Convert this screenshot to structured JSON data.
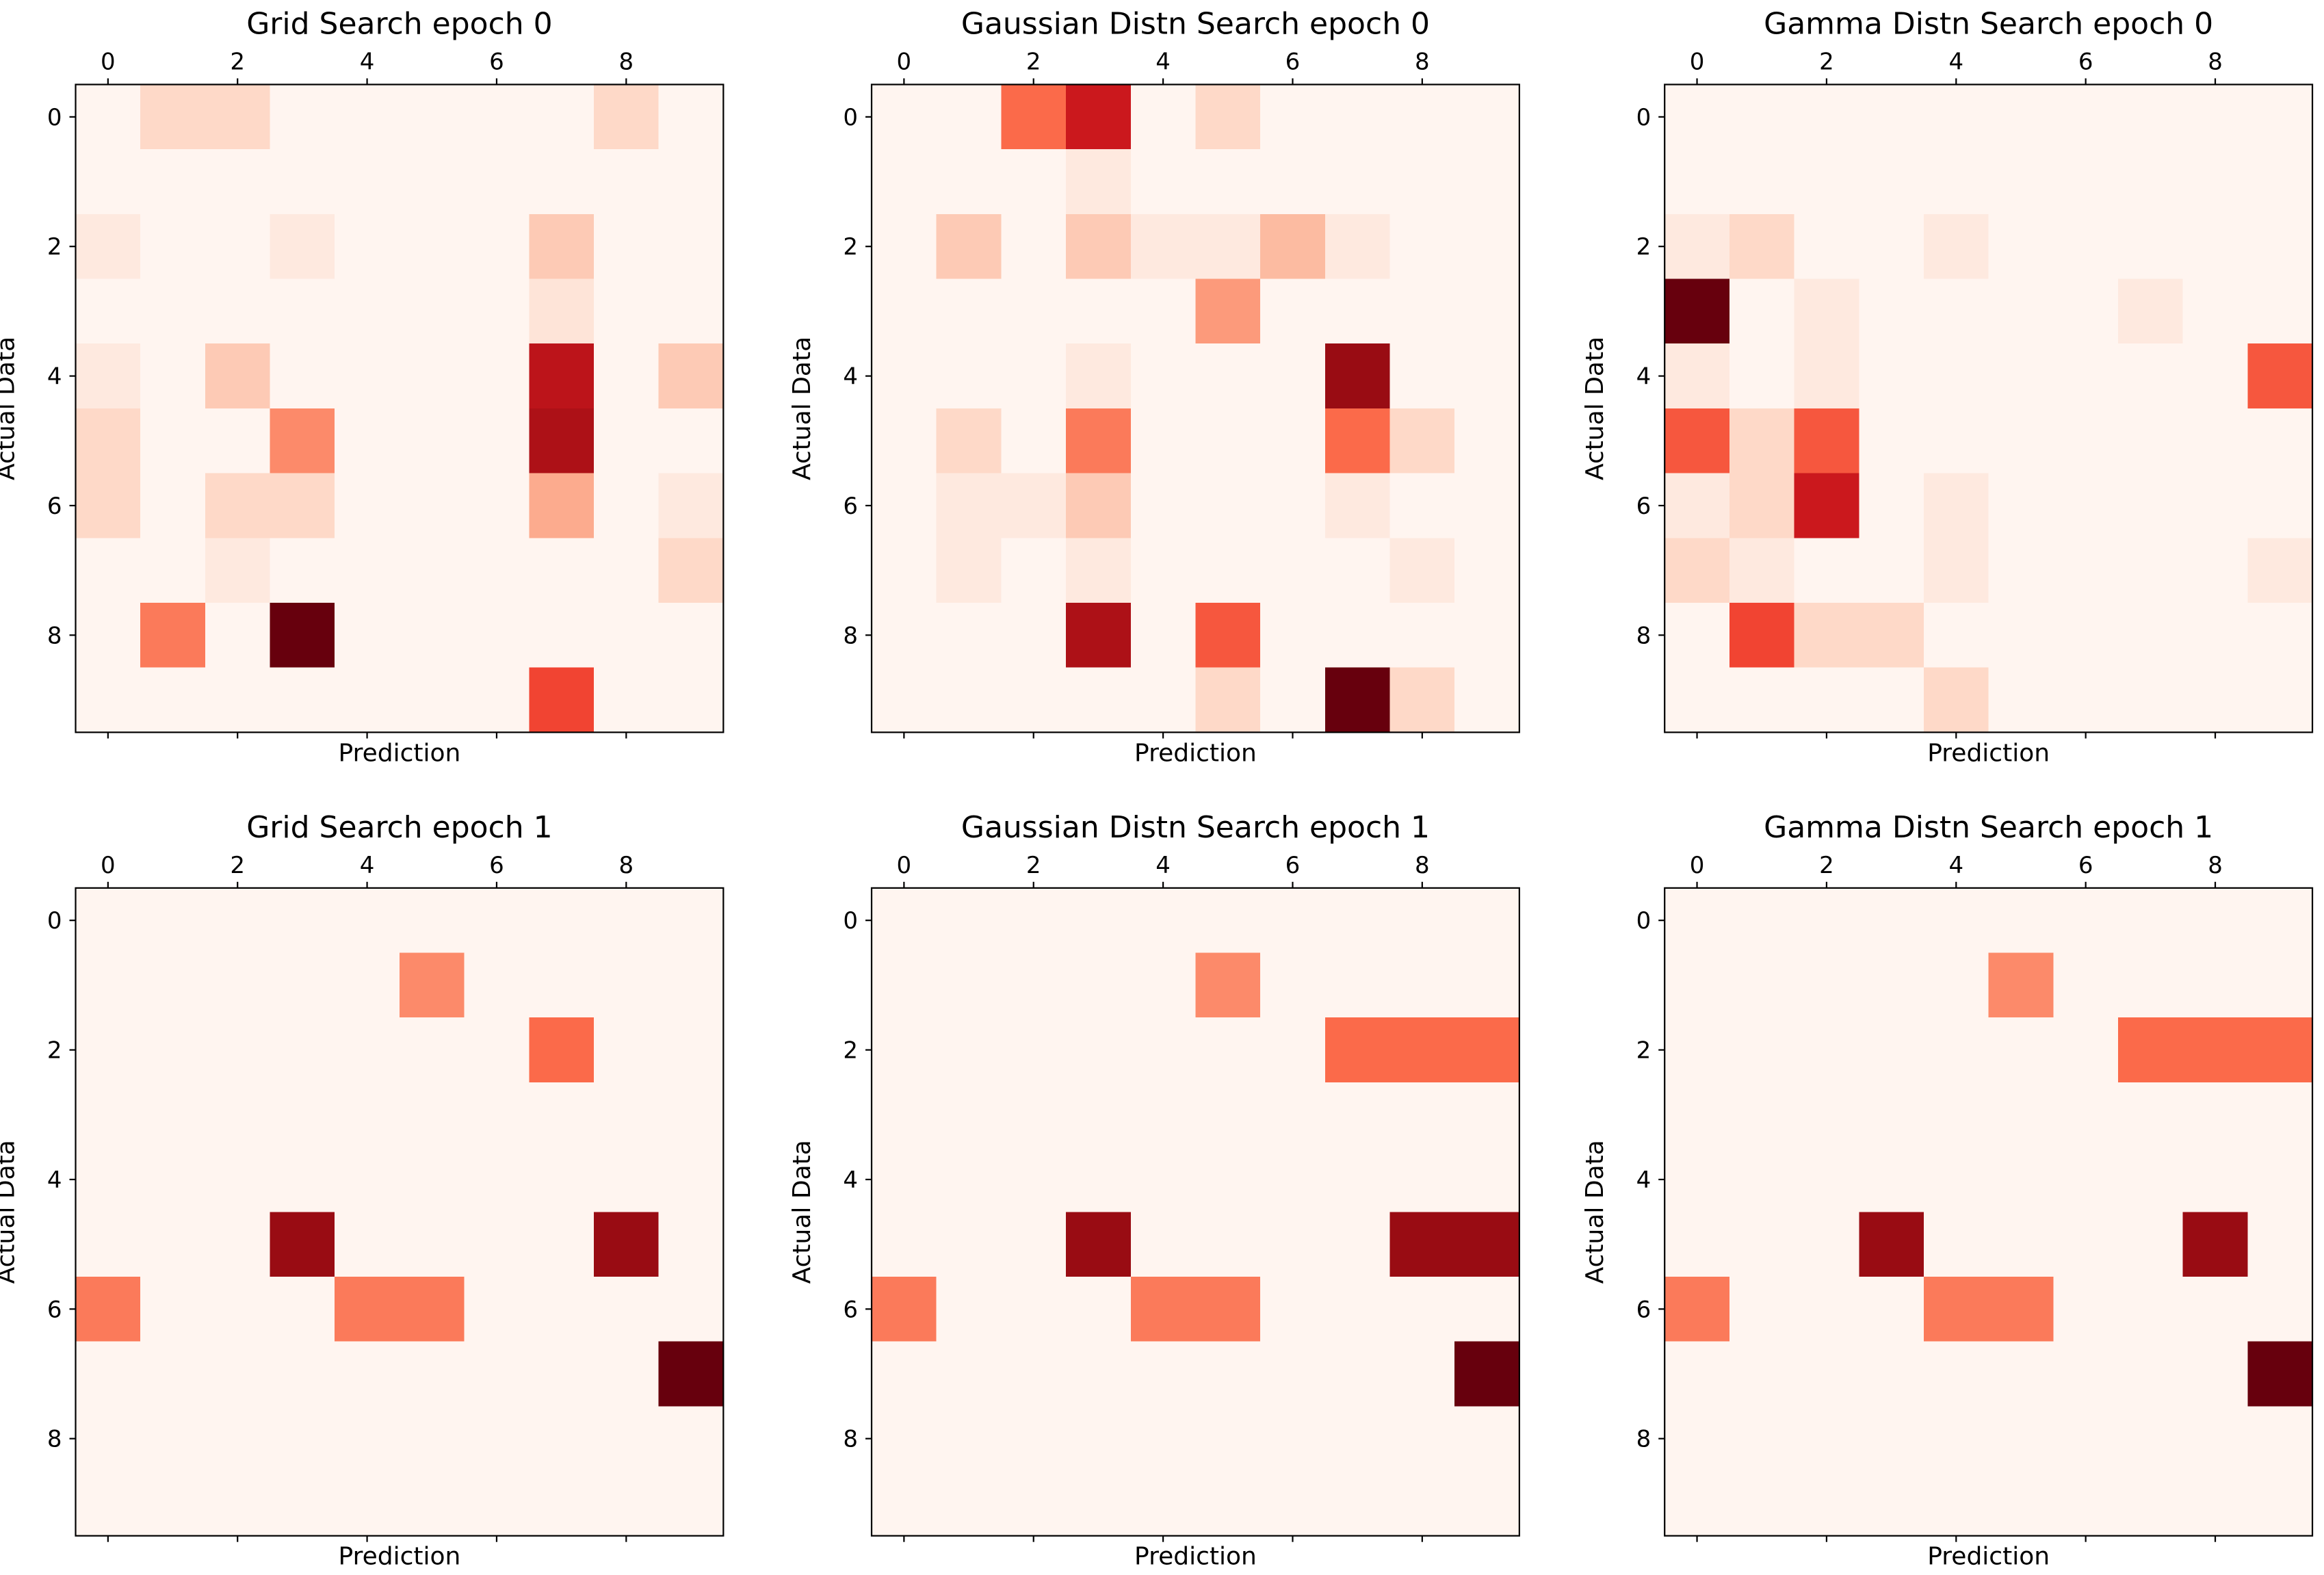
{
  "figure": {
    "type": "confusion-matrix-grid"
  },
  "chart_data": [
    {
      "type": "heatmap",
      "colormap": "Reds",
      "title": "Grid Search epoch 0",
      "xlabel": "Prediction",
      "ylabel": "Actual Data",
      "x_ticks": [
        "0",
        "2",
        "4",
        "6",
        "8"
      ],
      "y_ticks": [
        "0",
        "2",
        "4",
        "6",
        "8"
      ],
      "rows": 10,
      "cols": 10,
      "matrix": [
        [
          0,
          0.15,
          0.15,
          0,
          0,
          0,
          0,
          0,
          0.15,
          0
        ],
        [
          0,
          0,
          0,
          0,
          0,
          0,
          0,
          0,
          0,
          0
        ],
        [
          0.07,
          0,
          0,
          0.07,
          0,
          0,
          0,
          0.2,
          0,
          0
        ],
        [
          0,
          0,
          0,
          0,
          0,
          0,
          0,
          0.1,
          0,
          0
        ],
        [
          0.07,
          0,
          0.2,
          0,
          0,
          0,
          0,
          0.8,
          0,
          0.2
        ],
        [
          0.15,
          0,
          0,
          0.4,
          0,
          0,
          0,
          0.85,
          0,
          0
        ],
        [
          0.15,
          0,
          0.15,
          0.15,
          0,
          0,
          0,
          0.3,
          0,
          0.07
        ],
        [
          0,
          0,
          0.07,
          0,
          0,
          0,
          0,
          0,
          0,
          0.15
        ],
        [
          0,
          0.45,
          0,
          1,
          0,
          0,
          0,
          0,
          0,
          0
        ],
        [
          0,
          0,
          0,
          0,
          0,
          0,
          0,
          0.6,
          0,
          0
        ]
      ]
    },
    {
      "type": "heatmap",
      "colormap": "Reds",
      "title": "Gaussian Distn Search epoch 0",
      "xlabel": "Prediction",
      "ylabel": "Actual Data",
      "x_ticks": [
        "0",
        "2",
        "4",
        "6",
        "8"
      ],
      "y_ticks": [
        "0",
        "2",
        "4",
        "6",
        "8"
      ],
      "rows": 10,
      "cols": 10,
      "matrix": [
        [
          0,
          0,
          0.5,
          0.75,
          0,
          0.15,
          0,
          0,
          0,
          0
        ],
        [
          0,
          0,
          0,
          0.07,
          0,
          0,
          0,
          0,
          0,
          0
        ],
        [
          0,
          0.2,
          0,
          0.2,
          0.07,
          0.07,
          0.25,
          0.07,
          0,
          0
        ],
        [
          0,
          0,
          0,
          0,
          0,
          0.35,
          0,
          0,
          0,
          0
        ],
        [
          0,
          0,
          0,
          0.07,
          0,
          0,
          0,
          0.9,
          0,
          0
        ],
        [
          0,
          0.15,
          0,
          0.45,
          0,
          0,
          0,
          0.5,
          0.15,
          0
        ],
        [
          0,
          0.07,
          0.07,
          0.2,
          0,
          0,
          0,
          0.07,
          0,
          0
        ],
        [
          0,
          0.07,
          0,
          0.07,
          0,
          0,
          0,
          0,
          0.07,
          0
        ],
        [
          0,
          0,
          0,
          0.85,
          0,
          0.55,
          0,
          0,
          0,
          0
        ],
        [
          0,
          0,
          0,
          0,
          0,
          0.15,
          0,
          1,
          0.15,
          0
        ]
      ]
    },
    {
      "type": "heatmap",
      "colormap": "Reds",
      "title": "Gamma Distn Search epoch 0",
      "xlabel": "Prediction",
      "ylabel": "Actual Data",
      "x_ticks": [
        "0",
        "2",
        "4",
        "6",
        "8"
      ],
      "y_ticks": [
        "0",
        "2",
        "4",
        "6",
        "8"
      ],
      "rows": 10,
      "cols": 10,
      "matrix": [
        [
          0,
          0,
          0,
          0,
          0,
          0,
          0,
          0,
          0,
          0
        ],
        [
          0,
          0,
          0,
          0,
          0,
          0,
          0,
          0,
          0,
          0
        ],
        [
          0.07,
          0.15,
          0,
          0,
          0.07,
          0,
          0,
          0,
          0,
          0
        ],
        [
          1,
          0,
          0.07,
          0,
          0,
          0,
          0,
          0.07,
          0,
          0
        ],
        [
          0.07,
          0,
          0.07,
          0,
          0,
          0,
          0,
          0,
          0,
          0.55
        ],
        [
          0.55,
          0.15,
          0.55,
          0,
          0,
          0,
          0,
          0,
          0,
          0
        ],
        [
          0.07,
          0.15,
          0.75,
          0,
          0.07,
          0,
          0,
          0,
          0,
          0
        ],
        [
          0.15,
          0.07,
          0,
          0,
          0.07,
          0,
          0,
          0,
          0,
          0.07
        ],
        [
          0,
          0.6,
          0.15,
          0.15,
          0,
          0,
          0,
          0,
          0,
          0
        ],
        [
          0,
          0,
          0,
          0,
          0.15,
          0,
          0,
          0,
          0,
          0
        ]
      ]
    },
    {
      "type": "heatmap",
      "colormap": "Reds",
      "title": "Grid Search epoch 1",
      "xlabel": "Prediction",
      "ylabel": "Actual Data",
      "x_ticks": [
        "0",
        "2",
        "4",
        "6",
        "8"
      ],
      "y_ticks": [
        "0",
        "2",
        "4",
        "6",
        "8"
      ],
      "rows": 10,
      "cols": 10,
      "matrix": [
        [
          0,
          0,
          0,
          0,
          0,
          0,
          0,
          0,
          0,
          0
        ],
        [
          0,
          0,
          0,
          0,
          0,
          0.4,
          0,
          0,
          0,
          0
        ],
        [
          0,
          0,
          0,
          0,
          0,
          0,
          0,
          0.5,
          0,
          0
        ],
        [
          0,
          0,
          0,
          0,
          0,
          0,
          0,
          0,
          0,
          0
        ],
        [
          0,
          0,
          0,
          0,
          0,
          0,
          0,
          0,
          0,
          0
        ],
        [
          0,
          0,
          0,
          0.9,
          0,
          0,
          0,
          0,
          0.9,
          0
        ],
        [
          0.45,
          0,
          0,
          0,
          0.45,
          0.45,
          0,
          0,
          0,
          0
        ],
        [
          0,
          0,
          0,
          0,
          0,
          0,
          0,
          0,
          0,
          1
        ],
        [
          0,
          0,
          0,
          0,
          0,
          0,
          0,
          0,
          0,
          0
        ],
        [
          0,
          0,
          0,
          0,
          0,
          0,
          0,
          0,
          0,
          0
        ]
      ]
    },
    {
      "type": "heatmap",
      "colormap": "Reds",
      "title": "Gaussian Distn Search epoch 1",
      "xlabel": "Prediction",
      "ylabel": "Actual Data",
      "x_ticks": [
        "0",
        "2",
        "4",
        "6",
        "8"
      ],
      "y_ticks": [
        "0",
        "2",
        "4",
        "6",
        "8"
      ],
      "rows": 10,
      "cols": 10,
      "matrix": [
        [
          0,
          0,
          0,
          0,
          0,
          0,
          0,
          0,
          0,
          0
        ],
        [
          0,
          0,
          0,
          0,
          0,
          0.4,
          0,
          0,
          0,
          0
        ],
        [
          0,
          0,
          0,
          0,
          0,
          0,
          0,
          0.5,
          0.5,
          0.5
        ],
        [
          0,
          0,
          0,
          0,
          0,
          0,
          0,
          0,
          0,
          0
        ],
        [
          0,
          0,
          0,
          0,
          0,
          0,
          0,
          0,
          0,
          0
        ],
        [
          0,
          0,
          0,
          0.9,
          0,
          0,
          0,
          0,
          0.9,
          0.9
        ],
        [
          0.45,
          0,
          0,
          0,
          0.45,
          0.45,
          0,
          0,
          0,
          0
        ],
        [
          0,
          0,
          0,
          0,
          0,
          0,
          0,
          0,
          0,
          1
        ],
        [
          0,
          0,
          0,
          0,
          0,
          0,
          0,
          0,
          0,
          0
        ],
        [
          0,
          0,
          0,
          0,
          0,
          0,
          0,
          0,
          0,
          0
        ]
      ]
    },
    {
      "type": "heatmap",
      "colormap": "Reds",
      "title": "Gamma Distn Search epoch 1",
      "xlabel": "Prediction",
      "ylabel": "Actual Data",
      "x_ticks": [
        "0",
        "2",
        "4",
        "6",
        "8"
      ],
      "y_ticks": [
        "0",
        "2",
        "4",
        "6",
        "8"
      ],
      "rows": 10,
      "cols": 10,
      "matrix": [
        [
          0,
          0,
          0,
          0,
          0,
          0,
          0,
          0,
          0,
          0
        ],
        [
          0,
          0,
          0,
          0,
          0,
          0.4,
          0,
          0,
          0,
          0
        ],
        [
          0,
          0,
          0,
          0,
          0,
          0,
          0,
          0.5,
          0.5,
          0.5
        ],
        [
          0,
          0,
          0,
          0,
          0,
          0,
          0,
          0,
          0,
          0
        ],
        [
          0,
          0,
          0,
          0,
          0,
          0,
          0,
          0,
          0,
          0
        ],
        [
          0,
          0,
          0,
          0.9,
          0,
          0,
          0,
          0,
          0.9,
          0
        ],
        [
          0.45,
          0,
          0,
          0,
          0.45,
          0.45,
          0,
          0,
          0,
          0
        ],
        [
          0,
          0,
          0,
          0,
          0,
          0,
          0,
          0,
          0,
          1
        ],
        [
          0,
          0,
          0,
          0,
          0,
          0,
          0,
          0,
          0,
          0
        ],
        [
          0,
          0,
          0,
          0,
          0,
          0,
          0,
          0,
          0,
          0
        ]
      ]
    }
  ]
}
